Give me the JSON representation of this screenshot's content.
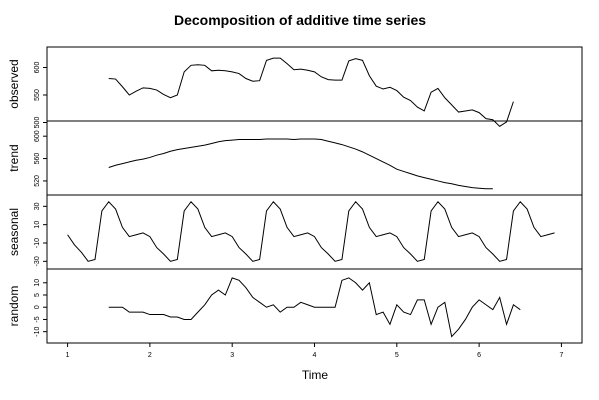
{
  "chart_data": {
    "type": "line",
    "title": "Decomposition of additive time series",
    "xlabel": "Time",
    "xlim": [
      0.75,
      7.25
    ],
    "x_ticks": [
      1,
      2,
      3,
      4,
      5,
      6,
      7
    ],
    "x_start": 1.5,
    "x_step": 0.0833333,
    "panels": [
      {
        "name": "observed",
        "ylim": [
          510,
          630
        ],
        "y_ticks": [
          500,
          550,
          600
        ],
        "y_tick_labels": [
          "500",
          "550",
          "600"
        ],
        "values": [
          580,
          579,
          565,
          550,
          557,
          563,
          562,
          559,
          551,
          545,
          550,
          592,
          604,
          605,
          604,
          594,
          595,
          594,
          592,
          589,
          580,
          575,
          576,
          613,
          617,
          617,
          607,
          596,
          597,
          595,
          592,
          583,
          578,
          577,
          577,
          612,
          616,
          613,
          585,
          566,
          561,
          564,
          558,
          546,
          540,
          528,
          521,
          555,
          562,
          545,
          532,
          519,
          521,
          523,
          518,
          507,
          505,
          493,
          501,
          538
        ]
      },
      {
        "name": "trend",
        "ylim": [
          502,
          620
        ],
        "y_ticks": [
          520,
          560,
          600
        ],
        "y_tick_labels": [
          "520",
          "560",
          "600"
        ],
        "values": [
          544,
          548,
          551,
          554,
          557,
          559,
          562,
          566,
          569,
          573,
          576,
          578,
          580,
          582,
          584,
          587,
          590,
          592,
          593,
          594,
          594,
          594,
          594,
          595,
          595,
          595,
          595,
          594,
          595,
          595,
          595,
          594,
          591,
          588,
          585,
          581,
          577,
          572,
          566,
          560,
          554,
          548,
          541,
          537,
          533,
          529,
          526,
          523,
          520,
          517,
          515,
          512,
          510,
          508,
          507,
          506,
          506
        ]
      },
      {
        "name": "seasonal",
        "ylim": [
          -34,
          38
        ],
        "y_ticks": [
          -30,
          -10,
          10,
          30
        ],
        "y_tick_labels": [
          "-30",
          "-10",
          "10",
          "30"
        ],
        "x_start": 1.0,
        "values": [
          -1,
          -12,
          -20,
          -30,
          -28,
          25,
          35,
          27,
          7,
          -3,
          -1,
          1,
          -3,
          -15,
          -22,
          -30,
          -28,
          25,
          35,
          27,
          7,
          -3,
          -1,
          1,
          -3,
          -15,
          -22,
          -30,
          -28,
          25,
          35,
          27,
          7,
          -3,
          -1,
          1,
          -3,
          -15,
          -22,
          -30,
          -28,
          25,
          35,
          27,
          7,
          -3,
          -1,
          1,
          -3,
          -15,
          -22,
          -30,
          -28,
          25,
          35,
          27,
          7,
          -3,
          -1,
          1,
          -3,
          -15,
          -22,
          -30,
          -28,
          25,
          35,
          27,
          7,
          -3,
          -1,
          1
        ]
      },
      {
        "name": "random",
        "ylim": [
          -13,
          14
        ],
        "y_ticks": [
          -10,
          -5,
          0,
          5,
          10
        ],
        "y_tick_labels": [
          "-10",
          "-5",
          "0",
          "5",
          "10"
        ],
        "values": [
          0,
          0,
          0,
          -2,
          -2,
          -2,
          -3,
          -3,
          -3,
          -4,
          -4,
          -5,
          -5,
          -2,
          1,
          5,
          7,
          5,
          12,
          11,
          8,
          4,
          2,
          0,
          1,
          -2,
          0,
          0,
          2,
          1,
          0,
          0,
          0,
          0,
          11,
          12,
          10,
          7,
          10,
          -3,
          -2,
          -7,
          1,
          -2,
          -3,
          3,
          3,
          -7,
          0,
          2,
          -12,
          -9,
          -5,
          0,
          3,
          1,
          -1,
          4,
          -7,
          1,
          -1
        ]
      }
    ]
  }
}
